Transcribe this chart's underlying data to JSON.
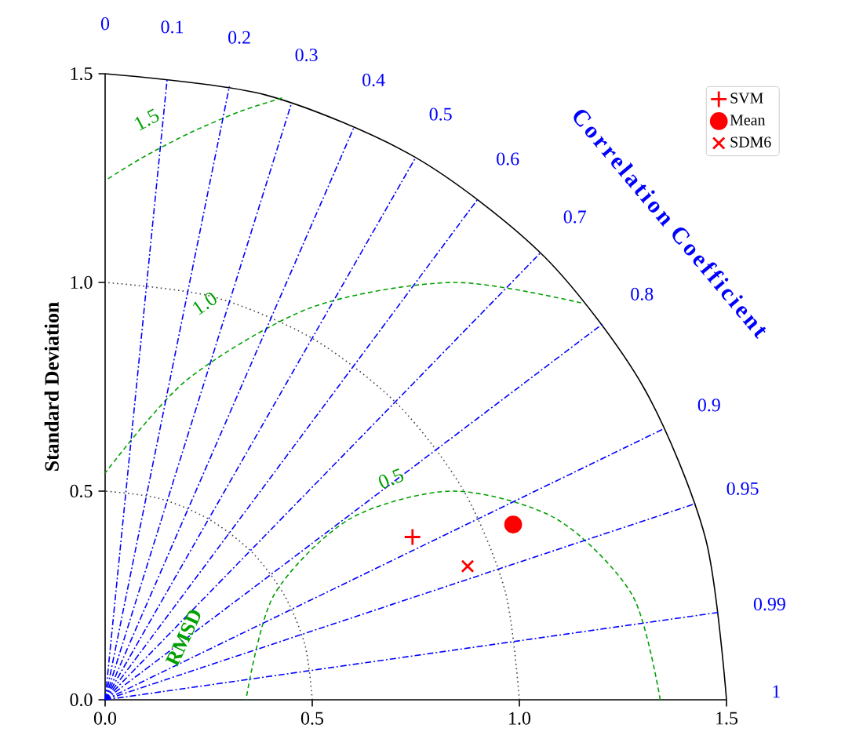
{
  "chart_data": {
    "type": "scatter",
    "ylabel": "Standard Deviation",
    "xlim": [
      0,
      1.5
    ],
    "ylim": [
      0,
      1.5
    ],
    "xticks": [
      {
        "value": 0,
        "label": "0.0"
      },
      {
        "value": 0.5,
        "label": "0.5"
      },
      {
        "value": 1,
        "label": "1.0"
      },
      {
        "value": 1.5,
        "label": "1.5"
      }
    ],
    "yticks": [
      {
        "value": 0,
        "label": "0.0"
      },
      {
        "value": 0.5,
        "label": "0.5"
      },
      {
        "value": 1,
        "label": "1.0"
      },
      {
        "value": 1.5,
        "label": "1.5"
      }
    ],
    "legend": "top right",
    "grid": false,
    "series": [
      {
        "type": "line",
        "color": "#404040",
        "line_style": "dotted",
        "x": [
          0.5,
          0.483,
          0.433,
          0.354,
          0.25,
          0.129,
          0
        ],
        "values": [
          0,
          0.129,
          0.25,
          0.354,
          0.433,
          0.483,
          0.5
        ]
      },
      {
        "type": "line",
        "color": "#404040",
        "line_style": "dotted",
        "x": [
          1,
          0.966,
          0.866,
          0.707,
          0.5,
          0.259,
          0
        ],
        "values": [
          0,
          0.259,
          0.5,
          0.707,
          0.866,
          0.966,
          1
        ]
      },
      {
        "type": "line",
        "color": "#000000",
        "line_style": "solid",
        "x": [
          1.5,
          1.449,
          1.299,
          1.061,
          0.75,
          0.388,
          0
        ],
        "values": [
          0,
          0.388,
          0.75,
          1.061,
          1.299,
          1.449,
          1.5
        ]
      },
      {
        "type": "line",
        "color": "#00a000",
        "line_style": "dashed",
        "x": [
          1.34,
          1.273,
          1.09,
          0.84,
          0.59,
          0.407,
          0.34
        ],
        "values": [
          0,
          0.25,
          0.433,
          0.5,
          0.433,
          0.25,
          0
        ]
      },
      {
        "type": "line",
        "color": "#00a000",
        "line_style": "dashed",
        "x": [
          1.149,
          0.84,
          0.498,
          0.197,
          0
        ],
        "values": [
          0.951,
          1.0,
          0.94,
          0.766,
          0.543
        ]
      },
      {
        "type": "line",
        "color": "#00a000",
        "line_style": "dashed",
        "x": [
          0.427,
          0.327,
          0.206,
          0.09,
          0
        ],
        "values": [
          1.442,
          1.41,
          1.359,
          1.299,
          1.244
        ]
      },
      {
        "type": "line",
        "color": "#0000ff",
        "line_style": "dashdot",
        "x": [
          0,
          0.15
        ],
        "values": [
          0,
          1.49
        ]
      },
      {
        "type": "line",
        "color": "#0000ff",
        "line_style": "dashdot",
        "x": [
          0,
          0.3
        ],
        "values": [
          0,
          1.47
        ]
      },
      {
        "type": "line",
        "color": "#0000ff",
        "line_style": "dashdot",
        "x": [
          0,
          0.45
        ],
        "values": [
          0,
          1.43
        ]
      },
      {
        "type": "line",
        "color": "#0000ff",
        "line_style": "dashdot",
        "x": [
          0,
          0.6
        ],
        "values": [
          0,
          1.37
        ]
      },
      {
        "type": "line",
        "color": "#0000ff",
        "line_style": "dashdot",
        "x": [
          0,
          0.75
        ],
        "values": [
          0,
          1.3
        ]
      },
      {
        "type": "line",
        "color": "#0000ff",
        "line_style": "dashdot",
        "x": [
          0,
          0.9
        ],
        "values": [
          0,
          1.2
        ]
      },
      {
        "type": "line",
        "color": "#0000ff",
        "line_style": "dashdot",
        "x": [
          0,
          1.05
        ],
        "values": [
          0,
          1.07
        ]
      },
      {
        "type": "line",
        "color": "#0000ff",
        "line_style": "dashdot",
        "x": [
          0,
          1.2
        ],
        "values": [
          0,
          0.9
        ]
      },
      {
        "type": "line",
        "color": "#0000ff",
        "line_style": "dashdot",
        "x": [
          0,
          1.35
        ],
        "values": [
          0,
          0.65
        ]
      },
      {
        "type": "line",
        "color": "#0000ff",
        "line_style": "dashdot",
        "x": [
          0,
          1.425
        ],
        "values": [
          0,
          0.47
        ]
      },
      {
        "type": "line",
        "color": "#0000ff",
        "line_style": "dashdot",
        "x": [
          0,
          1.485
        ],
        "values": [
          0,
          0.21
        ]
      },
      {
        "name": "SVM",
        "color": "#ff0000",
        "marker": "plus",
        "x": [
          0.742
        ],
        "values": [
          0.39
        ]
      },
      {
        "name": "Mean",
        "color": "#ff0000",
        "marker": "circle",
        "x": [
          0.985
        ],
        "values": [
          0.42
        ]
      },
      {
        "name": "SDM6",
        "color": "#ff0000",
        "marker": "cross",
        "x": [
          0.875
        ],
        "values": [
          0.32
        ]
      }
    ],
    "annotations": [
      "0",
      "0.1",
      "0.2",
      "0.3",
      "0.4",
      "0.5",
      "0.6",
      "0.7",
      "0.8",
      "0.9",
      "0.95",
      "0.99",
      "1",
      "Correlation Coefficient",
      "1.5",
      "1.0",
      "0.5",
      "RMSD"
    ]
  }
}
